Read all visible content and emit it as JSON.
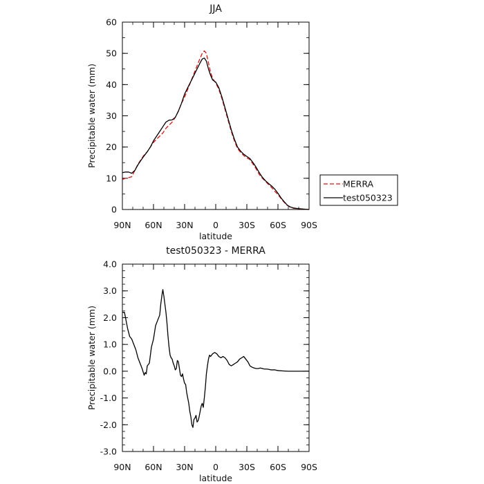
{
  "colors": {
    "axes": "#000000",
    "merra": "#e01010",
    "test": "#000000",
    "background": "#ffffff"
  },
  "chart_data": [
    {
      "type": "line",
      "title": "JJA",
      "xlabel": "latitude",
      "ylabel": "Precipitable water (mm)",
      "xlim": [
        90,
        -90
      ],
      "ylim": [
        0,
        60
      ],
      "x_ticks": [
        {
          "value": 90,
          "label": "90N"
        },
        {
          "value": 60,
          "label": "60N"
        },
        {
          "value": 30,
          "label": "30N"
        },
        {
          "value": 0,
          "label": "0"
        },
        {
          "value": -30,
          "label": "30S"
        },
        {
          "value": -60,
          "label": "60S"
        },
        {
          "value": -90,
          "label": "90S"
        }
      ],
      "y_ticks": [
        {
          "value": 0,
          "label": "0"
        },
        {
          "value": 10,
          "label": "10"
        },
        {
          "value": 20,
          "label": "20"
        },
        {
          "value": 30,
          "label": "30"
        },
        {
          "value": 40,
          "label": "40"
        },
        {
          "value": 50,
          "label": "50"
        },
        {
          "value": 60,
          "label": "60"
        }
      ],
      "legend": {
        "placement": "right"
      },
      "series": [
        {
          "name": "MERRA",
          "style": "dashed",
          "color": "#e01010",
          "points": [
            [
              90,
              9.6
            ],
            [
              87,
              10
            ],
            [
              84,
              10.2
            ],
            [
              81,
              10.5
            ],
            [
              78,
              12.5
            ],
            [
              75,
              14.5
            ],
            [
              72,
              16
            ],
            [
              69,
              17.5
            ],
            [
              66,
              18.5
            ],
            [
              63,
              20
            ],
            [
              60,
              21.5
            ],
            [
              57,
              22.5
            ],
            [
              54,
              23.5
            ],
            [
              51,
              24.5
            ],
            [
              48,
              26
            ],
            [
              45,
              27
            ],
            [
              42,
              28
            ],
            [
              39,
              29.5
            ],
            [
              36,
              31.5
            ],
            [
              33,
              34
            ],
            [
              30,
              36
            ],
            [
              27,
              38.5
            ],
            [
              24,
              41
            ],
            [
              21,
              43.5
            ],
            [
              18,
              46
            ],
            [
              15,
              48.5
            ],
            [
              13,
              50
            ],
            [
              11,
              50.8
            ],
            [
              9,
              50
            ],
            [
              7,
              47
            ],
            [
              5,
              44
            ],
            [
              3,
              42
            ],
            [
              0,
              40.5
            ],
            [
              -3,
              38.5
            ],
            [
              -6,
              35.5
            ],
            [
              -9,
              32
            ],
            [
              -12,
              28.5
            ],
            [
              -15,
              25
            ],
            [
              -18,
              22
            ],
            [
              -21,
              19.5
            ],
            [
              -24,
              18.3
            ],
            [
              -27,
              17.3
            ],
            [
              -30,
              16.5
            ],
            [
              -33,
              16
            ],
            [
              -36,
              14.5
            ],
            [
              -39,
              13
            ],
            [
              -42,
              11.2
            ],
            [
              -45,
              10
            ],
            [
              -48,
              9
            ],
            [
              -51,
              8
            ],
            [
              -54,
              7
            ],
            [
              -57,
              5.8
            ],
            [
              -60,
              4.8
            ],
            [
              -63,
              3.5
            ],
            [
              -66,
              2.3
            ],
            [
              -69,
              1.3
            ],
            [
              -72,
              0.7
            ],
            [
              -75,
              0.4
            ],
            [
              -78,
              0.3
            ],
            [
              -81,
              0.2
            ],
            [
              -84,
              0.1
            ],
            [
              -87,
              0.05
            ],
            [
              -90,
              0
            ]
          ]
        },
        {
          "name": "test050323",
          "style": "solid",
          "color": "#000000",
          "points": [
            [
              90,
              11.8
            ],
            [
              87,
              12
            ],
            [
              84,
              12
            ],
            [
              81,
              11.6
            ],
            [
              78,
              12.5
            ],
            [
              75,
              14.3
            ],
            [
              72,
              15.8
            ],
            [
              69,
              17.2
            ],
            [
              66,
              18.5
            ],
            [
              63,
              20
            ],
            [
              60,
              22
            ],
            [
              57,
              23.5
            ],
            [
              54,
              25
            ],
            [
              51,
              26.5
            ],
            [
              48,
              28
            ],
            [
              45,
              28.6
            ],
            [
              42,
              28.7
            ],
            [
              39,
              29.5
            ],
            [
              36,
              31.5
            ],
            [
              33,
              34
            ],
            [
              30,
              37
            ],
            [
              27,
              39
            ],
            [
              24,
              41
            ],
            [
              21,
              43
            ],
            [
              18,
              45
            ],
            [
              15,
              47
            ],
            [
              13,
              48.2
            ],
            [
              11,
              48.5
            ],
            [
              9,
              47.5
            ],
            [
              7,
              45
            ],
            [
              5,
              43
            ],
            [
              3,
              41.5
            ],
            [
              0,
              40.8
            ],
            [
              -3,
              39
            ],
            [
              -6,
              36
            ],
            [
              -9,
              32.5
            ],
            [
              -12,
              29
            ],
            [
              -15,
              25.5
            ],
            [
              -18,
              22.5
            ],
            [
              -21,
              20
            ],
            [
              -24,
              18.7
            ],
            [
              -27,
              17.7
            ],
            [
              -30,
              17
            ],
            [
              -33,
              16.3
            ],
            [
              -36,
              15
            ],
            [
              -39,
              13.5
            ],
            [
              -42,
              11.8
            ],
            [
              -45,
              10.3
            ],
            [
              -48,
              9.2
            ],
            [
              -51,
              8.3
            ],
            [
              -54,
              7.5
            ],
            [
              -57,
              6.5
            ],
            [
              -60,
              5.2
            ],
            [
              -63,
              3.7
            ],
            [
              -66,
              2.5
            ],
            [
              -69,
              1.4
            ],
            [
              -72,
              0.8
            ],
            [
              -75,
              0.5
            ],
            [
              -78,
              0.35
            ],
            [
              -81,
              0.25
            ],
            [
              -84,
              0.15
            ],
            [
              -87,
              0.07
            ],
            [
              -90,
              0
            ]
          ]
        }
      ]
    },
    {
      "type": "line",
      "title": "test050323 - MERRA",
      "xlabel": "latitude",
      "ylabel": "Precipitable water (mm)",
      "xlim": [
        90,
        -90
      ],
      "ylim": [
        -3,
        4
      ],
      "x_ticks": [
        {
          "value": 90,
          "label": "90N"
        },
        {
          "value": 60,
          "label": "60N"
        },
        {
          "value": 30,
          "label": "30N"
        },
        {
          "value": 0,
          "label": "0"
        },
        {
          "value": -30,
          "label": "30S"
        },
        {
          "value": -60,
          "label": "60S"
        },
        {
          "value": -90,
          "label": "90S"
        }
      ],
      "y_ticks": [
        {
          "value": -3,
          "label": "-3.0"
        },
        {
          "value": -2,
          "label": "-2.0"
        },
        {
          "value": -1,
          "label": "-1.0"
        },
        {
          "value": 0,
          "label": "0.0"
        },
        {
          "value": 1,
          "label": "1.0"
        },
        {
          "value": 2,
          "label": "2.0"
        },
        {
          "value": 3,
          "label": "3.0"
        },
        {
          "value": 4,
          "label": "4.0"
        }
      ],
      "series": [
        {
          "name": "test050323",
          "style": "solid",
          "color": "#000000",
          "points": [
            [
              90,
              2.2
            ],
            [
              88,
              2.2
            ],
            [
              87,
              2.0
            ],
            [
              85,
              1.6
            ],
            [
              83,
              1.3
            ],
            [
              81,
              1.2
            ],
            [
              79,
              1.0
            ],
            [
              77,
              0.8
            ],
            [
              75,
              0.5
            ],
            [
              73,
              0.3
            ],
            [
              71,
              0.1
            ],
            [
              69,
              -0.15
            ],
            [
              68,
              -0.05
            ],
            [
              67,
              -0.1
            ],
            [
              66,
              0.2
            ],
            [
              64,
              0.3
            ],
            [
              62,
              0.9
            ],
            [
              60,
              1.2
            ],
            [
              58,
              1.7
            ],
            [
              56,
              1.9
            ],
            [
              54,
              2.1
            ],
            [
              53,
              2.5
            ],
            [
              52,
              2.8
            ],
            [
              51,
              3.05
            ],
            [
              50,
              2.8
            ],
            [
              49,
              2.5
            ],
            [
              48,
              2.2
            ],
            [
              47,
              1.8
            ],
            [
              46,
              1.3
            ],
            [
              45,
              0.9
            ],
            [
              44,
              0.6
            ],
            [
              43,
              0.5
            ],
            [
              42,
              0.45
            ],
            [
              41,
              0.3
            ],
            [
              40,
              0.2
            ],
            [
              39,
              0.05
            ],
            [
              38,
              0.1
            ],
            [
              37,
              0.4
            ],
            [
              36,
              0.35
            ],
            [
              35,
              0.1
            ],
            [
              34,
              -0.15
            ],
            [
              33,
              -0.2
            ],
            [
              32,
              -0.1
            ],
            [
              31,
              -0.3
            ],
            [
              30,
              -0.45
            ],
            [
              29,
              -0.5
            ],
            [
              28,
              -0.8
            ],
            [
              27,
              -1.0
            ],
            [
              26,
              -1.2
            ],
            [
              25,
              -1.5
            ],
            [
              24,
              -1.7
            ],
            [
              23,
              -2.0
            ],
            [
              22,
              -2.1
            ],
            [
              21,
              -1.8
            ],
            [
              20,
              -1.75
            ],
            [
              19,
              -1.65
            ],
            [
              18,
              -1.9
            ],
            [
              17,
              -1.85
            ],
            [
              16,
              -1.7
            ],
            [
              15,
              -1.5
            ],
            [
              14,
              -1.3
            ],
            [
              13,
              -1.2
            ],
            [
              12,
              -1.35
            ],
            [
              11,
              -1.0
            ],
            [
              10,
              -0.6
            ],
            [
              9,
              -0.1
            ],
            [
              8,
              0.2
            ],
            [
              7,
              0.45
            ],
            [
              6,
              0.6
            ],
            [
              5,
              0.55
            ],
            [
              4,
              0.6
            ],
            [
              3,
              0.65
            ],
            [
              1,
              0.7
            ],
            [
              -1,
              0.65
            ],
            [
              -3,
              0.55
            ],
            [
              -5,
              0.5
            ],
            [
              -7,
              0.55
            ],
            [
              -9,
              0.5
            ],
            [
              -11,
              0.4
            ],
            [
              -13,
              0.25
            ],
            [
              -15,
              0.2
            ],
            [
              -17,
              0.25
            ],
            [
              -19,
              0.3
            ],
            [
              -21,
              0.35
            ],
            [
              -23,
              0.45
            ],
            [
              -25,
              0.5
            ],
            [
              -27,
              0.55
            ],
            [
              -29,
              0.45
            ],
            [
              -31,
              0.35
            ],
            [
              -33,
              0.2
            ],
            [
              -35,
              0.15
            ],
            [
              -37,
              0.12
            ],
            [
              -39,
              0.1
            ],
            [
              -41,
              0.1
            ],
            [
              -43,
              0.12
            ],
            [
              -45,
              0.1
            ],
            [
              -47,
              0.08
            ],
            [
              -49,
              0.08
            ],
            [
              -51,
              0.07
            ],
            [
              -53,
              0.05
            ],
            [
              -55,
              0.05
            ],
            [
              -57,
              0.05
            ],
            [
              -59,
              0.03
            ],
            [
              -61,
              0.02
            ],
            [
              -65,
              0.01
            ],
            [
              -70,
              0
            ],
            [
              -75,
              0
            ],
            [
              -80,
              0
            ],
            [
              -90,
              0
            ]
          ]
        }
      ]
    }
  ]
}
